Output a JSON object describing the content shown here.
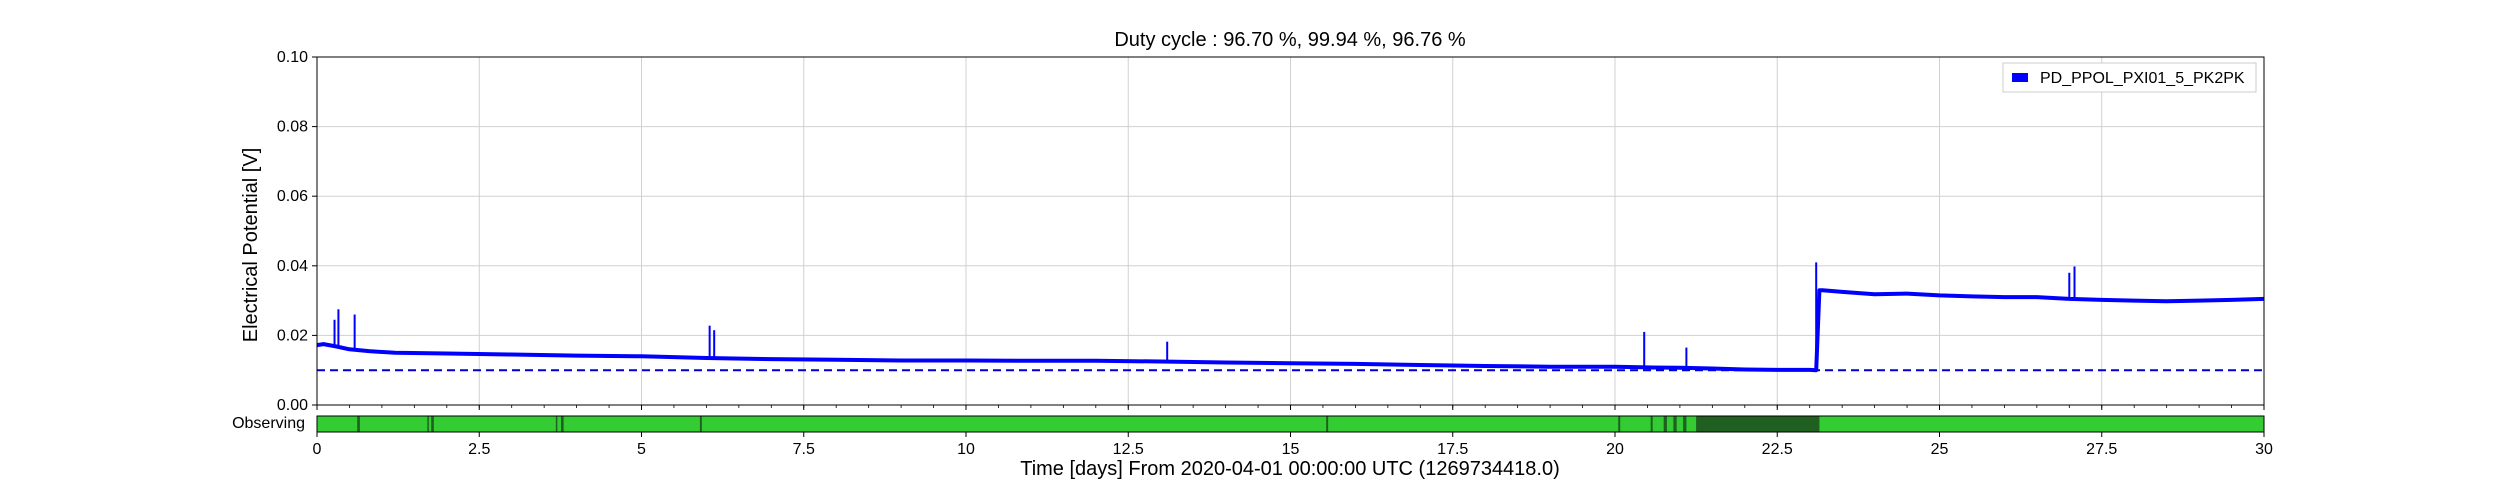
{
  "chart_data": {
    "type": "line",
    "title": "Duty cycle : 96.70 %, 99.94 %, 96.76 %",
    "xlabel": "Time [days] From 2020-04-01 00:00:00 UTC (1269734418.0)",
    "ylabel": "Electrical Potential [V]",
    "xlim": [
      0,
      30
    ],
    "ylim": [
      0,
      0.1
    ],
    "x_ticks": [
      0,
      2.5,
      5,
      7.5,
      10,
      12.5,
      15,
      17.5,
      20,
      22.5,
      25,
      27.5,
      30
    ],
    "x_tick_labels": [
      "0",
      "2.5",
      "5",
      "7.5",
      "10",
      "12.5",
      "15",
      "17.5",
      "20",
      "22.5",
      "25",
      "27.5",
      "30"
    ],
    "y_ticks": [
      0,
      0.02,
      0.04,
      0.06,
      0.08,
      0.1
    ],
    "y_tick_labels": [
      "0.00",
      "0.02",
      "0.04",
      "0.06",
      "0.08",
      "0.10"
    ],
    "grid": true,
    "legend_position": "top-right",
    "series": [
      {
        "name": "PD_PPOL_PXI01_5_PK2PK",
        "color": "#0000ff",
        "x": [
          0,
          0.1,
          0.3,
          0.5,
          0.8,
          1.2,
          2,
          3,
          4,
          5,
          6,
          7,
          8,
          9,
          10,
          11,
          12,
          13,
          14,
          15,
          16,
          17,
          18,
          19,
          20,
          20.5,
          21,
          21.5,
          22,
          22.5,
          23,
          23.1,
          23.15,
          23.2,
          23.5,
          24,
          24.5,
          25,
          25.5,
          26,
          26.5,
          27,
          27.5,
          28,
          28.5,
          29,
          29.5,
          30
        ],
        "values": [
          0.0172,
          0.0175,
          0.0168,
          0.016,
          0.0155,
          0.015,
          0.0148,
          0.0145,
          0.0142,
          0.014,
          0.0135,
          0.0132,
          0.013,
          0.0128,
          0.0128,
          0.0127,
          0.0127,
          0.0125,
          0.0122,
          0.012,
          0.0118,
          0.0115,
          0.0112,
          0.011,
          0.011,
          0.0108,
          0.0107,
          0.0105,
          0.0102,
          0.0101,
          0.0101,
          0.01,
          0.033,
          0.033,
          0.0325,
          0.0318,
          0.032,
          0.0315,
          0.0312,
          0.031,
          0.031,
          0.0305,
          0.0302,
          0.03,
          0.0298,
          0.03,
          0.0302,
          0.0305
        ]
      }
    ],
    "spikes": [
      {
        "x": 0.27,
        "y": 0.0245
      },
      {
        "x": 0.33,
        "y": 0.0275
      },
      {
        "x": 0.58,
        "y": 0.026
      },
      {
        "x": 6.05,
        "y": 0.0228
      },
      {
        "x": 6.12,
        "y": 0.0215
      },
      {
        "x": 13.1,
        "y": 0.0182
      },
      {
        "x": 20.45,
        "y": 0.021
      },
      {
        "x": 21.1,
        "y": 0.0165
      },
      {
        "x": 23.1,
        "y": 0.041
      },
      {
        "x": 27.0,
        "y": 0.038
      },
      {
        "x": 27.08,
        "y": 0.0398
      }
    ],
    "threshold": {
      "y": 0.01,
      "color": "#0000cc",
      "style": "dashed"
    },
    "observing_bar": {
      "label": "Observing",
      "color_on": "#33cc33",
      "color_off": "#1f5f1f",
      "off_segments": [
        [
          0.62,
          0.66
        ],
        [
          1.7,
          1.72
        ],
        [
          1.76,
          1.8
        ],
        [
          3.68,
          3.7
        ],
        [
          3.76,
          3.8
        ],
        [
          5.9,
          5.93
        ],
        [
          15.55,
          15.58
        ],
        [
          20.05,
          20.08
        ],
        [
          20.55,
          20.58
        ],
        [
          20.75,
          20.8
        ],
        [
          20.9,
          20.95
        ],
        [
          21.05,
          21.1
        ],
        [
          21.25,
          23.15
        ]
      ]
    }
  }
}
